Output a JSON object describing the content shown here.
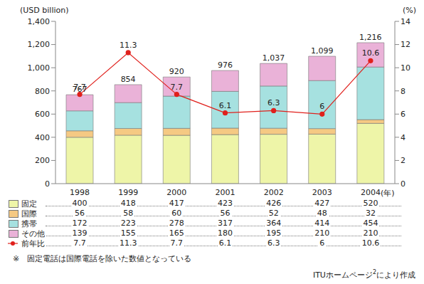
{
  "chart_data": {
    "type": "bar",
    "stacked": true,
    "grid": false,
    "data_labels": true,
    "ylabel": "(USD billion)",
    "y2label": "(%)",
    "xlabel": "(年)",
    "categories": [
      "1998",
      "1999",
      "2000",
      "2001",
      "2002",
      "2003",
      "2004"
    ],
    "series": [
      {
        "name": "固定",
        "color": "#eef5a8",
        "values": [
          400,
          418,
          417,
          423,
          426,
          427,
          520
        ]
      },
      {
        "name": "国際",
        "color": "#f5c983",
        "values": [
          56,
          58,
          60,
          56,
          52,
          48,
          32
        ]
      },
      {
        "name": "携帯",
        "color": "#a6e1e0",
        "values": [
          172,
          223,
          278,
          317,
          364,
          414,
          454
        ]
      },
      {
        "name": "その他",
        "color": "#eab2d8",
        "values": [
          139,
          155,
          165,
          180,
          195,
          210,
          210
        ]
      },
      {
        "name": "前年比",
        "color": "#e0201c",
        "type": "line",
        "marker": "circle",
        "axis": "y2",
        "values": [
          7.7,
          11.3,
          7.7,
          6.1,
          6.3,
          6.0,
          10.6
        ]
      }
    ],
    "totals": [
      767,
      854,
      920,
      976,
      1037,
      1099,
      1216
    ],
    "total_labels": [
      "767",
      "854",
      "920",
      "976",
      "1,037",
      "1,099",
      "1,216"
    ],
    "ylim": [
      0,
      1400
    ],
    "yticks": [
      0,
      200,
      400,
      600,
      800,
      {
        "value": 1000,
        "label": "1,000"
      },
      {
        "value": 1200,
        "label": "1,200"
      },
      {
        "value": 1400,
        "label": "1,400"
      }
    ],
    "y2lim": [
      0,
      14
    ],
    "y2ticks": [
      0,
      2,
      4,
      6,
      8,
      10,
      12,
      14
    ],
    "annotations": [
      "※　固定電話は国際電話を除いた数値となっている"
    ],
    "source": [
      "ITUホームページ",
      "2",
      "により作成"
    ]
  }
}
